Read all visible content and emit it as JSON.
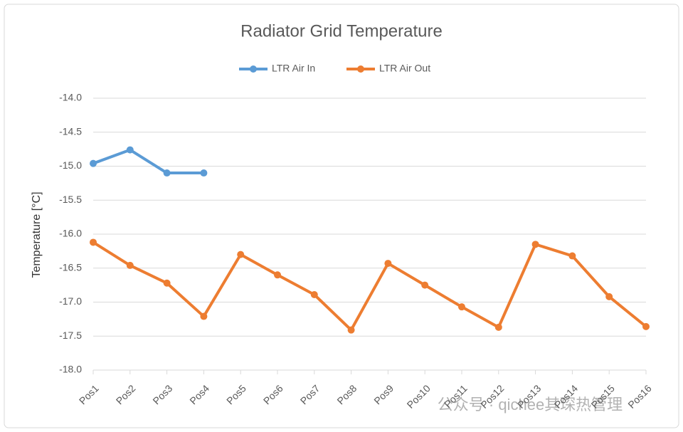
{
  "chart_data": {
    "type": "line",
    "title": "Radiator Grid Temperature",
    "y_label": "Temperature [°C]",
    "categories": [
      "Pos1",
      "Pos2",
      "Pos3",
      "Pos4",
      "Pos5",
      "Pos6",
      "Pos7",
      "Pos8",
      "Pos9",
      "Pos10",
      "Pos11",
      "Pos12",
      "Pos13",
      "Pos14",
      "Pos15",
      "Pos16"
    ],
    "series": [
      {
        "name": "LTR Air In",
        "color": "#5b9bd5",
        "values": [
          -14.96,
          -14.76,
          -15.1,
          -15.1,
          null,
          null,
          null,
          null,
          null,
          null,
          null,
          null,
          null,
          null,
          null,
          null
        ]
      },
      {
        "name": "LTR Air Out",
        "color": "#ed7d31",
        "values": [
          -16.12,
          -16.46,
          -16.72,
          -17.21,
          -16.3,
          -16.6,
          -16.89,
          -17.41,
          -16.43,
          -16.75,
          -17.07,
          -17.37,
          -16.15,
          -16.32,
          -16.92,
          -17.36
        ]
      }
    ],
    "ylim": [
      -18,
      -14
    ],
    "yticks": [
      {
        "value": -18,
        "label": "-18.0"
      },
      -17.5,
      {
        "value": -17,
        "label": "-17.0"
      },
      -16.5,
      {
        "value": -16,
        "label": "-16.0"
      },
      -15.5,
      {
        "value": -15,
        "label": "-15.0"
      },
      -14.5,
      {
        "value": -14,
        "label": "-14.0"
      }
    ],
    "grid": true,
    "legend": "top",
    "watermark": "公众号 · qichee其琛热管理"
  }
}
